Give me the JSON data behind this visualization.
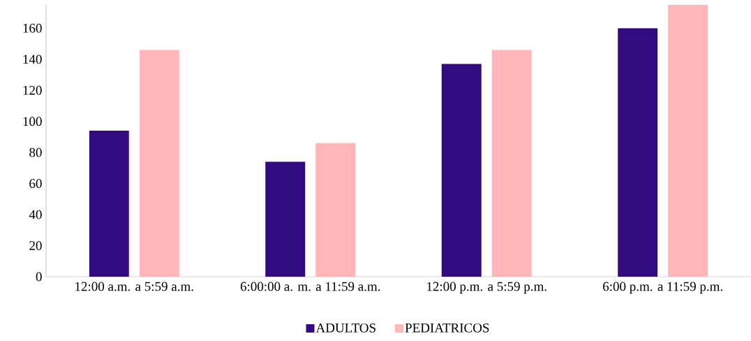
{
  "chart_data": {
    "type": "bar",
    "categories": [
      "12:00 a.m. a 5:59 a.m.",
      "6:00:00 a. m. a 11:59 a.m.",
      "12:00 p.m. a 5:59 p.m.",
      "6:00 p.m. a 11:59 p.m."
    ],
    "series": [
      {
        "name": "ADULTOS",
        "color": "#330b80",
        "values": [
          94,
          74,
          137,
          160
        ]
      },
      {
        "name": "PEDIATRICOS",
        "color": "#ffb6b8",
        "values": [
          146,
          86,
          146,
          175
        ]
      }
    ],
    "ylim": [
      0,
      175
    ],
    "yticks": [
      0,
      20,
      40,
      60,
      80,
      100,
      120,
      140,
      160
    ],
    "grid": false,
    "legend": "bottom"
  }
}
